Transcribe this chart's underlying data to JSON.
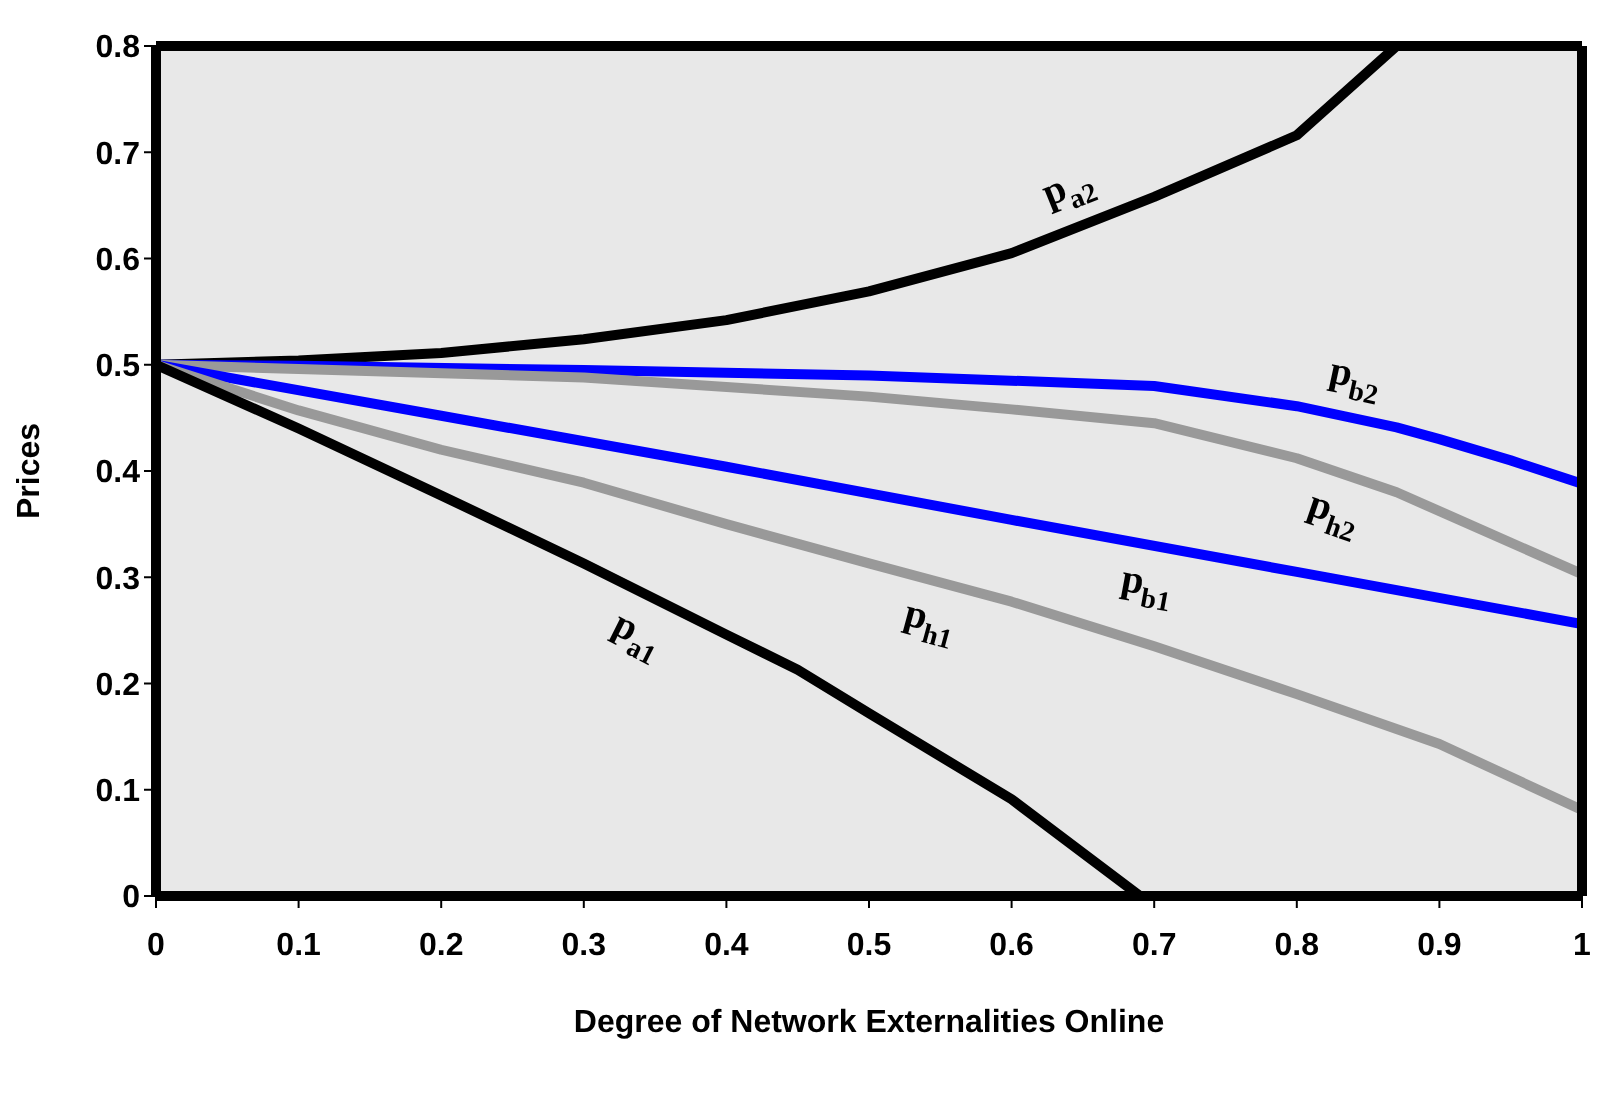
{
  "chart_data": {
    "type": "line",
    "xlabel": "Degree of Network Externalities Online",
    "ylabel": "Prices",
    "xlim": [
      0,
      1
    ],
    "xticks": [
      0,
      0.1,
      0.2,
      0.3,
      0.4,
      0.5,
      0.6,
      0.7,
      0.8,
      0.9,
      1
    ],
    "ylim": [
      0,
      0.8
    ],
    "yticks": [
      0,
      0.1,
      0.2,
      0.3,
      0.4,
      0.5,
      0.6,
      0.7,
      0.8
    ],
    "grid": false,
    "legend": false,
    "marker": "none",
    "line_style": "solid",
    "series": [
      {
        "name": "p$_{a2}$",
        "color": "#000000",
        "x": [
          0,
          0.1,
          0.2,
          0.3,
          0.4,
          0.5,
          0.6,
          0.7,
          0.8,
          0.87
        ],
        "values": [
          0.5,
          0.504,
          0.511,
          0.524,
          0.542,
          0.569,
          0.605,
          0.658,
          0.716,
          0.8
        ]
      },
      {
        "name": "p$_{b2}$",
        "color": "#0000ff",
        "x": [
          0,
          0.1,
          0.3,
          0.5,
          0.7,
          0.8,
          0.87,
          0.9,
          0.95,
          1
        ],
        "values": [
          0.5,
          0.499,
          0.495,
          0.49,
          0.48,
          0.461,
          0.441,
          0.43,
          0.41,
          0.388
        ]
      },
      {
        "name": "p$_{h2}$",
        "color": "#999999",
        "x": [
          0,
          0.1,
          0.3,
          0.5,
          0.6,
          0.7,
          0.8,
          0.87,
          1
        ],
        "values": [
          0.5,
          0.496,
          0.488,
          0.47,
          0.458,
          0.445,
          0.412,
          0.38,
          0.303
        ]
      },
      {
        "name": "p$_{b1}$",
        "color": "#0000ff",
        "x": [
          0,
          0.2,
          0.4,
          0.6,
          0.8,
          1
        ],
        "values": [
          0.5,
          0.452,
          0.404,
          0.354,
          0.305,
          0.256
        ]
      },
      {
        "name": "p$_{h1}$",
        "color": "#999999",
        "x": [
          0,
          0.1,
          0.2,
          0.3,
          0.4,
          0.5,
          0.6,
          0.7,
          0.8,
          0.9,
          1
        ],
        "values": [
          0.5,
          0.457,
          0.42,
          0.389,
          0.35,
          0.313,
          0.277,
          0.235,
          0.19,
          0.143,
          0.081
        ]
      },
      {
        "name": "p$_{a1}$",
        "color": "#000000",
        "x": [
          0,
          0.1,
          0.2,
          0.3,
          0.4,
          0.45,
          0.5,
          0.6,
          0.69
        ],
        "values": [
          0.5,
          0.44,
          0.377,
          0.313,
          0.246,
          0.213,
          0.172,
          0.091,
          0
        ]
      }
    ]
  }
}
